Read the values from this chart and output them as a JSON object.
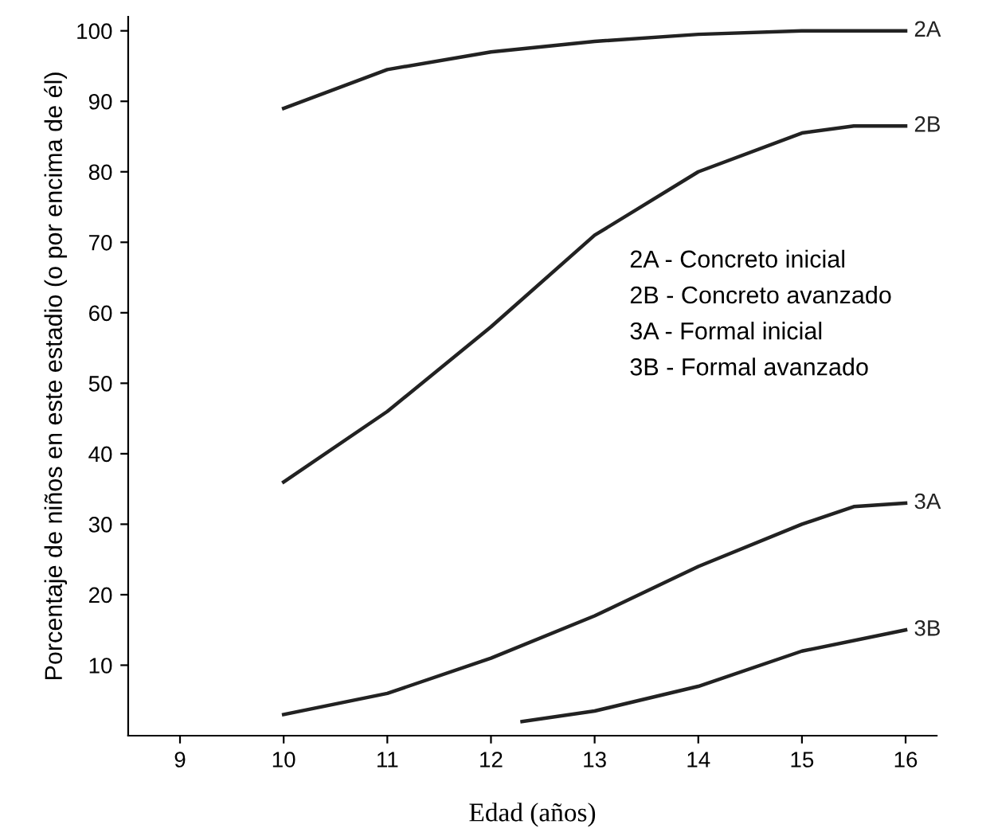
{
  "chart_data": {
    "type": "line",
    "xlabel": "Edad (años)",
    "ylabel": "Porcentaje de niños en este estadio (o por encima de él)",
    "xlim": [
      8.5,
      16.3
    ],
    "ylim": [
      0,
      102
    ],
    "xticks": [
      9,
      10,
      11,
      12,
      13,
      14,
      15,
      16
    ],
    "yticks": [
      10,
      20,
      30,
      40,
      50,
      60,
      70,
      80,
      90,
      100
    ],
    "grid": false,
    "legend": false,
    "marker": "none",
    "line_style": "solid",
    "series": [
      {
        "name": "2A",
        "color": "#222222",
        "x": [
          10,
          11,
          12,
          13,
          14,
          15,
          16
        ],
        "values": [
          89,
          94.5,
          97,
          98.5,
          99.5,
          100,
          100
        ]
      },
      {
        "name": "2B",
        "color": "#222222",
        "x": [
          10,
          11,
          12,
          13,
          14,
          15,
          15.5,
          16
        ],
        "values": [
          36,
          46,
          58,
          71,
          80,
          85.5,
          86.5,
          86.5
        ]
      },
      {
        "name": "3A",
        "color": "#222222",
        "x": [
          10,
          11,
          12,
          13,
          14,
          15,
          15.5,
          16
        ],
        "values": [
          3,
          6,
          11,
          17,
          24,
          30,
          32.5,
          33
        ]
      },
      {
        "name": "3B",
        "color": "#222222",
        "x": [
          12.3,
          13,
          14,
          15,
          16
        ],
        "values": [
          2,
          3.5,
          7,
          12,
          15
        ]
      }
    ],
    "annotations": [
      "2A - Concreto inicial",
      "2B - Concreto avanzado",
      "3A - Formal inicial",
      "3B - Formal avanzado"
    ]
  }
}
